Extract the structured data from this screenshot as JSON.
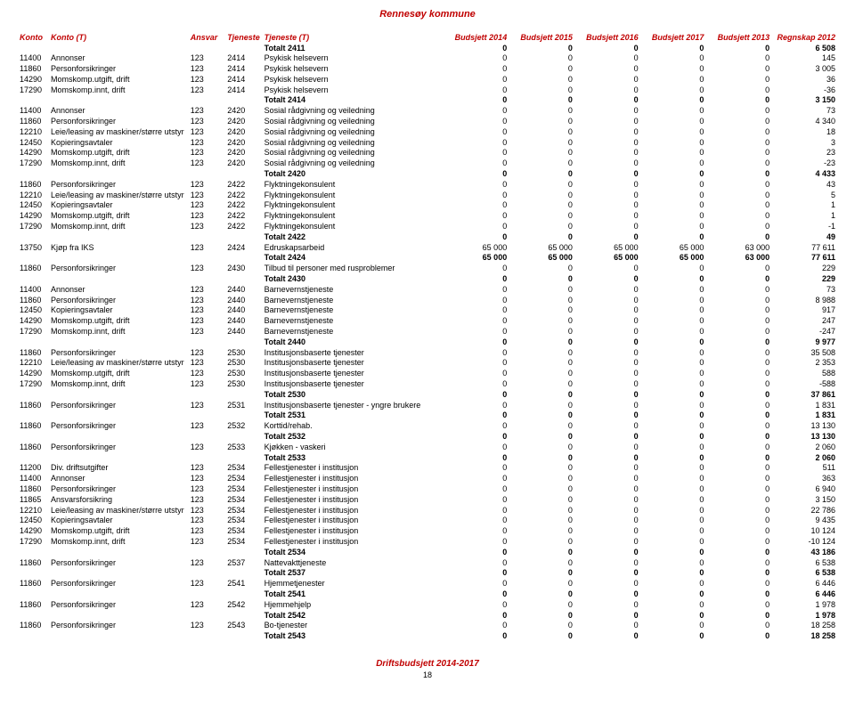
{
  "header": "Rennesøy kommune",
  "footer": {
    "title": "Driftsbudsjett 2014-2017",
    "page": "18"
  },
  "columns": [
    "Konto",
    "Konto (T)",
    "Ansvar",
    "Tjeneste",
    "Tjeneste (T)",
    "Budsjett 2014",
    "Budsjett 2015",
    "Budsjett 2016",
    "Budsjett 2017",
    "Budsjett 2013",
    "Regnskap 2012"
  ],
  "rows": [
    {
      "t": 1,
      "c": [
        "",
        "",
        "",
        "",
        "Totalt 2411",
        "0",
        "0",
        "0",
        "0",
        "0",
        "6 508"
      ]
    },
    {
      "c": [
        "11400",
        "Annonser",
        "123",
        "2414",
        "Psykisk helsevern",
        "0",
        "0",
        "0",
        "0",
        "0",
        "145"
      ]
    },
    {
      "c": [
        "11860",
        "Personforsikringer",
        "123",
        "2414",
        "Psykisk helsevern",
        "0",
        "0",
        "0",
        "0",
        "0",
        "3 005"
      ]
    },
    {
      "c": [
        "14290",
        "Momskomp.utgift, drift",
        "123",
        "2414",
        "Psykisk helsevern",
        "0",
        "0",
        "0",
        "0",
        "0",
        "36"
      ]
    },
    {
      "c": [
        "17290",
        "Momskomp.innt, drift",
        "123",
        "2414",
        "Psykisk helsevern",
        "0",
        "0",
        "0",
        "0",
        "0",
        "-36"
      ]
    },
    {
      "t": 1,
      "c": [
        "",
        "",
        "",
        "",
        "Totalt 2414",
        "0",
        "0",
        "0",
        "0",
        "0",
        "3 150"
      ]
    },
    {
      "c": [
        "11400",
        "Annonser",
        "123",
        "2420",
        "Sosial rådgivning og veiledning",
        "0",
        "0",
        "0",
        "0",
        "0",
        "73"
      ]
    },
    {
      "c": [
        "11860",
        "Personforsikringer",
        "123",
        "2420",
        "Sosial rådgivning og veiledning",
        "0",
        "0",
        "0",
        "0",
        "0",
        "4 340"
      ]
    },
    {
      "c": [
        "12210",
        "Leie/leasing av maskiner/større utstyr",
        "123",
        "2420",
        "Sosial rådgivning og veiledning",
        "0",
        "0",
        "0",
        "0",
        "0",
        "18"
      ]
    },
    {
      "c": [
        "12450",
        "Kopieringsavtaler",
        "123",
        "2420",
        "Sosial rådgivning og veiledning",
        "0",
        "0",
        "0",
        "0",
        "0",
        "3"
      ]
    },
    {
      "c": [
        "14290",
        "Momskomp.utgift, drift",
        "123",
        "2420",
        "Sosial rådgivning og veiledning",
        "0",
        "0",
        "0",
        "0",
        "0",
        "23"
      ]
    },
    {
      "c": [
        "17290",
        "Momskomp.innt, drift",
        "123",
        "2420",
        "Sosial rådgivning og veiledning",
        "0",
        "0",
        "0",
        "0",
        "0",
        "-23"
      ]
    },
    {
      "t": 1,
      "c": [
        "",
        "",
        "",
        "",
        "Totalt 2420",
        "0",
        "0",
        "0",
        "0",
        "0",
        "4 433"
      ]
    },
    {
      "c": [
        "11860",
        "Personforsikringer",
        "123",
        "2422",
        "Flyktningekonsulent",
        "0",
        "0",
        "0",
        "0",
        "0",
        "43"
      ]
    },
    {
      "c": [
        "12210",
        "Leie/leasing av maskiner/større utstyr",
        "123",
        "2422",
        "Flyktningekonsulent",
        "0",
        "0",
        "0",
        "0",
        "0",
        "5"
      ]
    },
    {
      "c": [
        "12450",
        "Kopieringsavtaler",
        "123",
        "2422",
        "Flyktningekonsulent",
        "0",
        "0",
        "0",
        "0",
        "0",
        "1"
      ]
    },
    {
      "c": [
        "14290",
        "Momskomp.utgift, drift",
        "123",
        "2422",
        "Flyktningekonsulent",
        "0",
        "0",
        "0",
        "0",
        "0",
        "1"
      ]
    },
    {
      "c": [
        "17290",
        "Momskomp.innt, drift",
        "123",
        "2422",
        "Flyktningekonsulent",
        "0",
        "0",
        "0",
        "0",
        "0",
        "-1"
      ]
    },
    {
      "t": 1,
      "c": [
        "",
        "",
        "",
        "",
        "Totalt 2422",
        "0",
        "0",
        "0",
        "0",
        "0",
        "49"
      ]
    },
    {
      "c": [
        "13750",
        "Kjøp fra IKS",
        "123",
        "2424",
        "Edruskapsarbeid",
        "65 000",
        "65 000",
        "65 000",
        "65 000",
        "63 000",
        "77 611"
      ]
    },
    {
      "t": 1,
      "c": [
        "",
        "",
        "",
        "",
        "Totalt 2424",
        "65 000",
        "65 000",
        "65 000",
        "65 000",
        "63 000",
        "77 611"
      ]
    },
    {
      "c": [
        "11860",
        "Personforsikringer",
        "123",
        "2430",
        "Tilbud til personer med rusproblemer",
        "0",
        "0",
        "0",
        "0",
        "0",
        "229"
      ]
    },
    {
      "t": 1,
      "c": [
        "",
        "",
        "",
        "",
        "Totalt 2430",
        "0",
        "0",
        "0",
        "0",
        "0",
        "229"
      ]
    },
    {
      "c": [
        "11400",
        "Annonser",
        "123",
        "2440",
        "Barnevernstjeneste",
        "0",
        "0",
        "0",
        "0",
        "0",
        "73"
      ]
    },
    {
      "c": [
        "11860",
        "Personforsikringer",
        "123",
        "2440",
        "Barnevernstjeneste",
        "0",
        "0",
        "0",
        "0",
        "0",
        "8 988"
      ]
    },
    {
      "c": [
        "12450",
        "Kopieringsavtaler",
        "123",
        "2440",
        "Barnevernstjeneste",
        "0",
        "0",
        "0",
        "0",
        "0",
        "917"
      ]
    },
    {
      "c": [
        "14290",
        "Momskomp.utgift, drift",
        "123",
        "2440",
        "Barnevernstjeneste",
        "0",
        "0",
        "0",
        "0",
        "0",
        "247"
      ]
    },
    {
      "c": [
        "17290",
        "Momskomp.innt, drift",
        "123",
        "2440",
        "Barnevernstjeneste",
        "0",
        "0",
        "0",
        "0",
        "0",
        "-247"
      ]
    },
    {
      "t": 1,
      "c": [
        "",
        "",
        "",
        "",
        "Totalt 2440",
        "0",
        "0",
        "0",
        "0",
        "0",
        "9 977"
      ]
    },
    {
      "c": [
        "11860",
        "Personforsikringer",
        "123",
        "2530",
        "Institusjonsbaserte tjenester",
        "0",
        "0",
        "0",
        "0",
        "0",
        "35 508"
      ]
    },
    {
      "c": [
        "12210",
        "Leie/leasing av maskiner/større utstyr",
        "123",
        "2530",
        "Institusjonsbaserte tjenester",
        "0",
        "0",
        "0",
        "0",
        "0",
        "2 353"
      ]
    },
    {
      "c": [
        "14290",
        "Momskomp.utgift, drift",
        "123",
        "2530",
        "Institusjonsbaserte tjenester",
        "0",
        "0",
        "0",
        "0",
        "0",
        "588"
      ]
    },
    {
      "c": [
        "17290",
        "Momskomp.innt, drift",
        "123",
        "2530",
        "Institusjonsbaserte tjenester",
        "0",
        "0",
        "0",
        "0",
        "0",
        "-588"
      ]
    },
    {
      "t": 1,
      "c": [
        "",
        "",
        "",
        "",
        "Totalt 2530",
        "0",
        "0",
        "0",
        "0",
        "0",
        "37 861"
      ]
    },
    {
      "c": [
        "11860",
        "Personforsikringer",
        "123",
        "2531",
        "Institusjonsbaserte tjenester - yngre brukere",
        "0",
        "0",
        "0",
        "0",
        "0",
        "1 831"
      ]
    },
    {
      "t": 1,
      "c": [
        "",
        "",
        "",
        "",
        "Totalt 2531",
        "0",
        "0",
        "0",
        "0",
        "0",
        "1 831"
      ]
    },
    {
      "c": [
        "11860",
        "Personforsikringer",
        "123",
        "2532",
        "Korttid/rehab.",
        "0",
        "0",
        "0",
        "0",
        "0",
        "13 130"
      ]
    },
    {
      "t": 1,
      "c": [
        "",
        "",
        "",
        "",
        "Totalt 2532",
        "0",
        "0",
        "0",
        "0",
        "0",
        "13 130"
      ]
    },
    {
      "c": [
        "11860",
        "Personforsikringer",
        "123",
        "2533",
        "Kjøkken - vaskeri",
        "0",
        "0",
        "0",
        "0",
        "0",
        "2 060"
      ]
    },
    {
      "t": 1,
      "c": [
        "",
        "",
        "",
        "",
        "Totalt 2533",
        "0",
        "0",
        "0",
        "0",
        "0",
        "2 060"
      ]
    },
    {
      "c": [
        "11200",
        "Div. driftsutgifter",
        "123",
        "2534",
        "Fellestjenester i institusjon",
        "0",
        "0",
        "0",
        "0",
        "0",
        "511"
      ]
    },
    {
      "c": [
        "11400",
        "Annonser",
        "123",
        "2534",
        "Fellestjenester i institusjon",
        "0",
        "0",
        "0",
        "0",
        "0",
        "363"
      ]
    },
    {
      "c": [
        "11860",
        "Personforsikringer",
        "123",
        "2534",
        "Fellestjenester i institusjon",
        "0",
        "0",
        "0",
        "0",
        "0",
        "6 940"
      ]
    },
    {
      "c": [
        "11865",
        "Ansvarsforsikring",
        "123",
        "2534",
        "Fellestjenester i institusjon",
        "0",
        "0",
        "0",
        "0",
        "0",
        "3 150"
      ]
    },
    {
      "c": [
        "12210",
        "Leie/leasing av maskiner/større utstyr",
        "123",
        "2534",
        "Fellestjenester i institusjon",
        "0",
        "0",
        "0",
        "0",
        "0",
        "22 786"
      ]
    },
    {
      "c": [
        "12450",
        "Kopieringsavtaler",
        "123",
        "2534",
        "Fellestjenester i institusjon",
        "0",
        "0",
        "0",
        "0",
        "0",
        "9 435"
      ]
    },
    {
      "c": [
        "14290",
        "Momskomp.utgift, drift",
        "123",
        "2534",
        "Fellestjenester i institusjon",
        "0",
        "0",
        "0",
        "0",
        "0",
        "10 124"
      ]
    },
    {
      "c": [
        "17290",
        "Momskomp.innt, drift",
        "123",
        "2534",
        "Fellestjenester i institusjon",
        "0",
        "0",
        "0",
        "0",
        "0",
        "-10 124"
      ]
    },
    {
      "t": 1,
      "c": [
        "",
        "",
        "",
        "",
        "Totalt 2534",
        "0",
        "0",
        "0",
        "0",
        "0",
        "43 186"
      ]
    },
    {
      "c": [
        "11860",
        "Personforsikringer",
        "123",
        "2537",
        "Nattevakttjeneste",
        "0",
        "0",
        "0",
        "0",
        "0",
        "6 538"
      ]
    },
    {
      "t": 1,
      "c": [
        "",
        "",
        "",
        "",
        "Totalt 2537",
        "0",
        "0",
        "0",
        "0",
        "0",
        "6 538"
      ]
    },
    {
      "c": [
        "11860",
        "Personforsikringer",
        "123",
        "2541",
        "Hjemmetjenester",
        "0",
        "0",
        "0",
        "0",
        "0",
        "6 446"
      ]
    },
    {
      "t": 1,
      "c": [
        "",
        "",
        "",
        "",
        "Totalt 2541",
        "0",
        "0",
        "0",
        "0",
        "0",
        "6 446"
      ]
    },
    {
      "c": [
        "11860",
        "Personforsikringer",
        "123",
        "2542",
        "Hjemmehjelp",
        "0",
        "0",
        "0",
        "0",
        "0",
        "1 978"
      ]
    },
    {
      "t": 1,
      "c": [
        "",
        "",
        "",
        "",
        "Totalt 2542",
        "0",
        "0",
        "0",
        "0",
        "0",
        "1 978"
      ]
    },
    {
      "c": [
        "11860",
        "Personforsikringer",
        "123",
        "2543",
        "Bo-tjenester",
        "0",
        "0",
        "0",
        "0",
        "0",
        "18 258"
      ]
    },
    {
      "t": 1,
      "c": [
        "",
        "",
        "",
        "",
        "Totalt 2543",
        "0",
        "0",
        "0",
        "0",
        "0",
        "18 258"
      ]
    }
  ]
}
